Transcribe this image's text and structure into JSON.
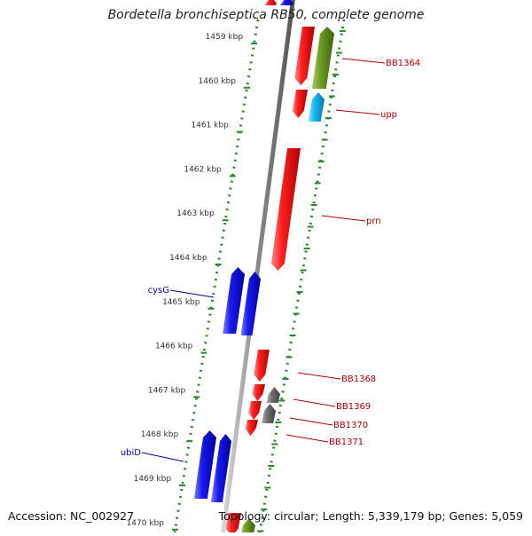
{
  "title": "Bordetella bronchiseptica RB50, complete genome",
  "footer": {
    "accession": "Accession: NC_002927",
    "summary": "Topology: circular; Length: 5,339,179 bp; Genes: 5,059"
  },
  "scale": {
    "ticks": [
      {
        "value": 1459,
        "label": "1459 kbp"
      },
      {
        "value": 1460,
        "label": "1460 kbp"
      },
      {
        "value": 1461,
        "label": "1461 kbp"
      },
      {
        "value": 1462,
        "label": "1462 kbp"
      },
      {
        "value": 1463,
        "label": "1463 kbp"
      },
      {
        "value": 1464,
        "label": "1464 kbp"
      },
      {
        "value": 1465,
        "label": "1465 kbp"
      },
      {
        "value": 1466,
        "label": "1466 kbp"
      },
      {
        "value": 1467,
        "label": "1467 kbp"
      },
      {
        "value": 1468,
        "label": "1468 kbp"
      },
      {
        "value": 1469,
        "label": "1469 kbp"
      },
      {
        "value": 1470,
        "label": "1470 kbp"
      }
    ]
  },
  "colors": {
    "red": "#e8141c",
    "blue": "#1a1ae6",
    "olive": "#6b9a22",
    "cyan": "#12b6f0",
    "gray": "#707070",
    "right_label": "#b30000",
    "left_label": "#0000a0",
    "dotted": "#2a8a2a"
  },
  "genes": [
    {
      "name": "BB1364",
      "side": "right",
      "color": "red"
    },
    {
      "name": "upp",
      "side": "right",
      "color": "red"
    },
    {
      "name": "prn",
      "side": "right",
      "color": "red"
    },
    {
      "name": "cysG",
      "side": "left",
      "color": "blue"
    },
    {
      "name": "BB1368",
      "side": "right",
      "color": "red"
    },
    {
      "name": "BB1369",
      "side": "right",
      "color": "red"
    },
    {
      "name": "BB1370",
      "side": "right",
      "color": "red"
    },
    {
      "name": "BB1371",
      "side": "right",
      "color": "red"
    },
    {
      "name": "ubiD",
      "side": "left",
      "color": "blue"
    }
  ]
}
